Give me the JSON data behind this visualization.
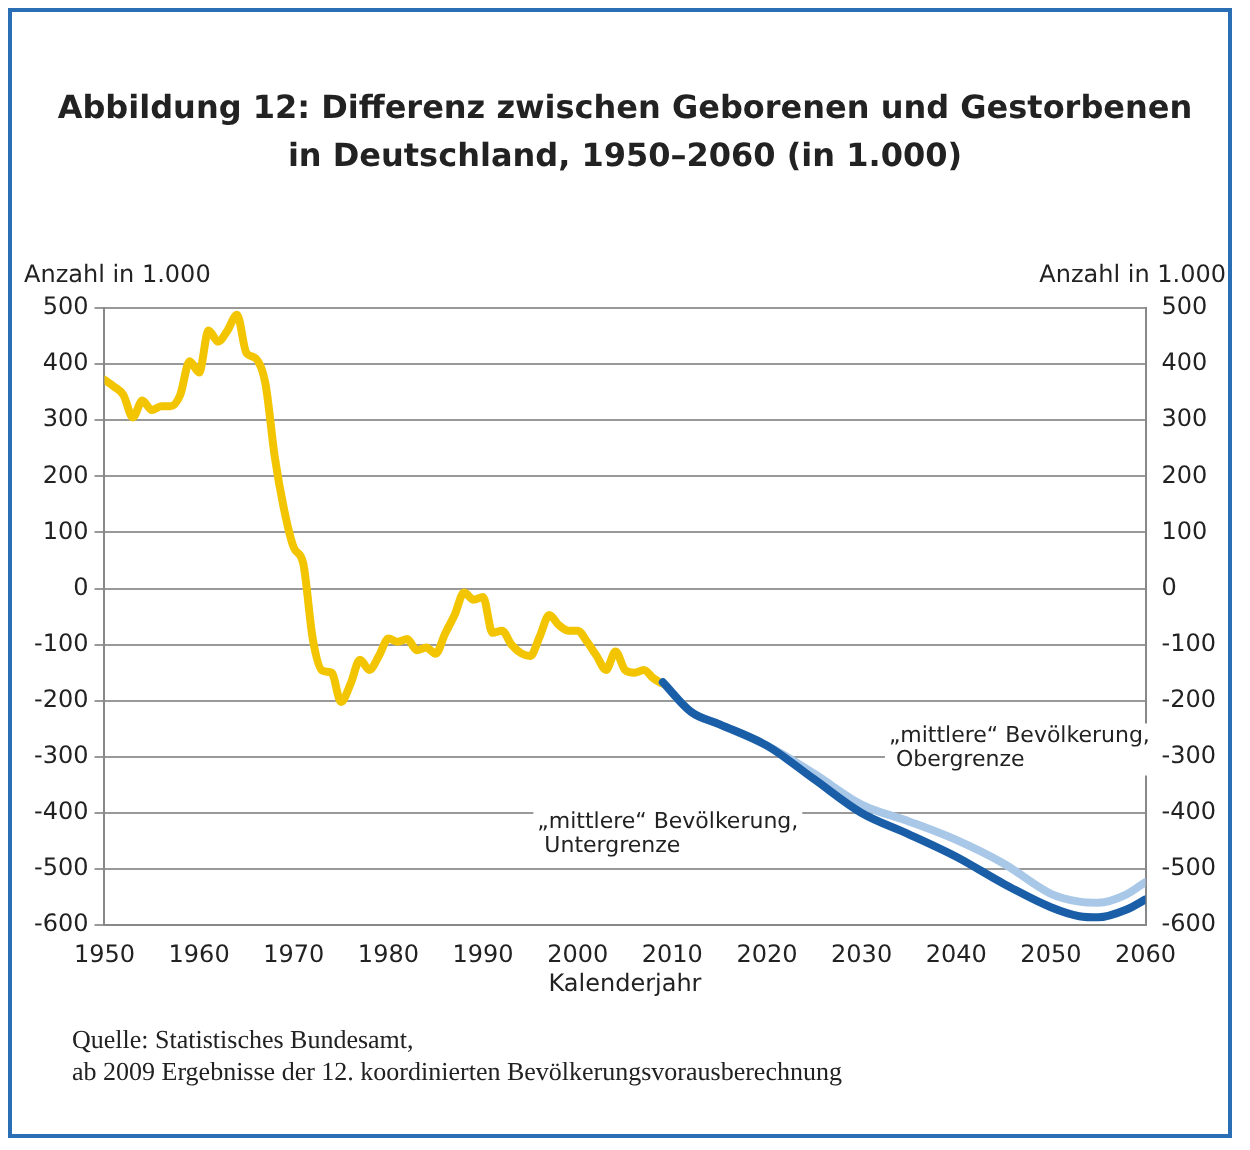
{
  "chart_data": {
    "type": "line",
    "title": "Abbildung 12: Differenz zwischen Geborenen und Gestorbenen\nin Deutschland, 1950–2060 (in 1.000)",
    "xlabel": "Kalenderjahr",
    "ylabel": "Anzahl in 1.000",
    "y2label": "Anzahl in 1.000",
    "xlim": [
      1950,
      2060
    ],
    "xticks": [
      1950,
      1960,
      1970,
      1980,
      1990,
      2000,
      2010,
      2020,
      2030,
      2040,
      2050,
      2060
    ],
    "ylim": [
      -600,
      500
    ],
    "yticks": [
      -600,
      -500,
      -400,
      -300,
      -200,
      -100,
      0,
      100,
      200,
      300,
      400,
      500
    ],
    "y2lim": [
      -600,
      500
    ],
    "y2ticks": [
      -600,
      -500,
      -400,
      -300,
      -200,
      -100,
      0,
      100,
      200,
      300,
      400,
      500
    ],
    "grid": "y",
    "legend": false,
    "marker": "none",
    "line_style": "solid",
    "series": [
      {
        "color": "#f2c500",
        "x": [
          1950,
          1951,
          1952,
          1953,
          1954,
          1955,
          1956,
          1957,
          1958,
          1959,
          1960,
          1961,
          1962,
          1963,
          1964,
          1965,
          1966,
          1967,
          1968,
          1969,
          1970,
          1971,
          1972,
          1973,
          1974,
          1975,
          1976,
          1977,
          1978,
          1979,
          1980,
          1981,
          1982,
          1983,
          1984,
          1985,
          1986,
          1987,
          1988,
          1989,
          1990,
          1991,
          1992,
          1993,
          1994,
          1995,
          1996,
          1997,
          1998,
          1999,
          2000,
          2001,
          2002,
          2003,
          2004,
          2005,
          2006,
          2007,
          2008,
          2009
        ],
        "values": [
          372,
          360,
          345,
          305,
          335,
          318,
          325,
          325,
          345,
          405,
          385,
          460,
          440,
          460,
          488,
          420,
          410,
          366,
          234,
          139,
          73,
          45,
          -89,
          -146,
          -150,
          -202,
          -170,
          -127,
          -145,
          -120,
          -89,
          -95,
          -90,
          -110,
          -105,
          -116,
          -80,
          -47,
          -7,
          -20,
          -15,
          -79,
          -75,
          -100,
          -115,
          -120,
          -85,
          -47,
          -65,
          -75,
          -75,
          -95,
          -120,
          -145,
          -112,
          -145,
          -150,
          -145,
          -160,
          -170
        ]
      },
      {
        "name": "„mittlere“ Bevölkerung, Obergrenze",
        "color": "#a9c8e8",
        "x": [
          2009,
          2012,
          2015,
          2020,
          2025,
          2030,
          2035,
          2040,
          2045,
          2050,
          2053,
          2055,
          2058,
          2060
        ],
        "values": [
          -167,
          -220,
          -242,
          -280,
          -330,
          -385,
          -415,
          -448,
          -490,
          -544,
          -558,
          -560,
          -545,
          -523
        ]
      },
      {
        "name": "„mittlere“ Bevölkerung, Untergrenze",
        "color": "#1a5ea8",
        "x": [
          2009,
          2012,
          2015,
          2020,
          2025,
          2030,
          2035,
          2040,
          2045,
          2050,
          2053,
          2055,
          2058,
          2060
        ],
        "values": [
          -167,
          -220,
          -242,
          -280,
          -340,
          -400,
          -438,
          -478,
          -526,
          -568,
          -584,
          -586,
          -572,
          -554
        ]
      }
    ],
    "annotations": [
      "Quelle: Statistisches Bundesamt,\nab 2009 Ergebnisse der 12. koordinierten Bevölkerungsvorausberechnung"
    ]
  }
}
